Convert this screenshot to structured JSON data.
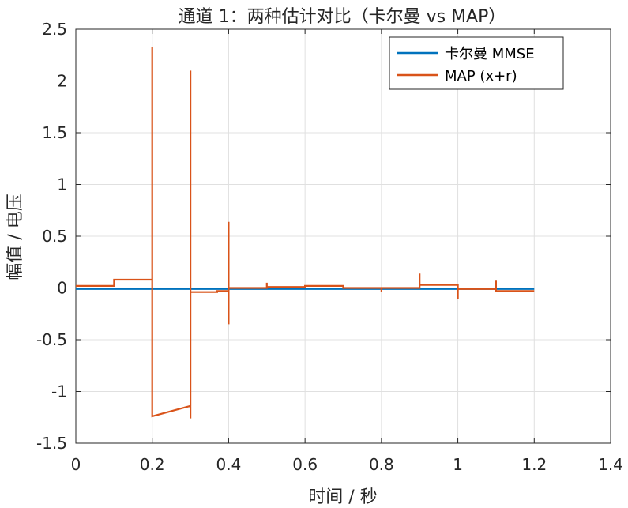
{
  "chart_data": {
    "type": "line",
    "title": "通道 1：两种估计对比（卡尔曼 vs MAP）",
    "xlabel": "时间 / 秒",
    "ylabel": "幅值 / 电压",
    "xlim": [
      0,
      1.4
    ],
    "ylim": [
      -1.5,
      2.5
    ],
    "xticks": [
      0,
      0.2,
      0.4,
      0.6,
      0.8,
      1,
      1.2,
      1.4
    ],
    "xtick_labels": [
      "0",
      "0.2",
      "0.4",
      "0.6",
      "0.8",
      "1",
      "1.2",
      "1.4"
    ],
    "yticks": [
      -1.5,
      -1,
      -0.5,
      0,
      0.5,
      1,
      1.5,
      2,
      2.5
    ],
    "ytick_labels": [
      "-1.5",
      "-1",
      "-0.5",
      "0",
      "0.5",
      "1",
      "1.5",
      "2",
      "2.5"
    ],
    "grid": true,
    "legend_position": "top-right",
    "series": [
      {
        "name": "卡尔曼 MMSE",
        "color": "#0072BD",
        "x": [
          0,
          1.2
        ],
        "y": [
          -0.01,
          -0.01
        ]
      },
      {
        "name": "MAP (x+r)",
        "color": "#D95319",
        "x": [
          0,
          0.1,
          0.1,
          0.2,
          0.2,
          0.2,
          0.3,
          0.3,
          0.3,
          0.3,
          0.31,
          0.37,
          0.37,
          0.4,
          0.4,
          0.4,
          0.4,
          0.5,
          0.5,
          0.5,
          0.6,
          0.6,
          0.7,
          0.7,
          0.8,
          0.8,
          0.8,
          0.9,
          0.9,
          0.9,
          1.0,
          1.0,
          1.0,
          1.1,
          1.1,
          1.1,
          1.2
        ],
        "y": [
          0.02,
          0.02,
          0.08,
          0.08,
          2.33,
          -1.24,
          -1.14,
          2.1,
          -1.26,
          -0.04,
          -0.04,
          -0.04,
          -0.03,
          -0.03,
          0.64,
          -0.35,
          0.0,
          0.0,
          0.05,
          0.01,
          0.01,
          0.02,
          0.02,
          0.0,
          0.0,
          -0.04,
          0.0,
          0.0,
          0.14,
          0.03,
          0.03,
          -0.11,
          -0.01,
          -0.01,
          0.07,
          -0.03,
          -0.03
        ]
      }
    ]
  }
}
